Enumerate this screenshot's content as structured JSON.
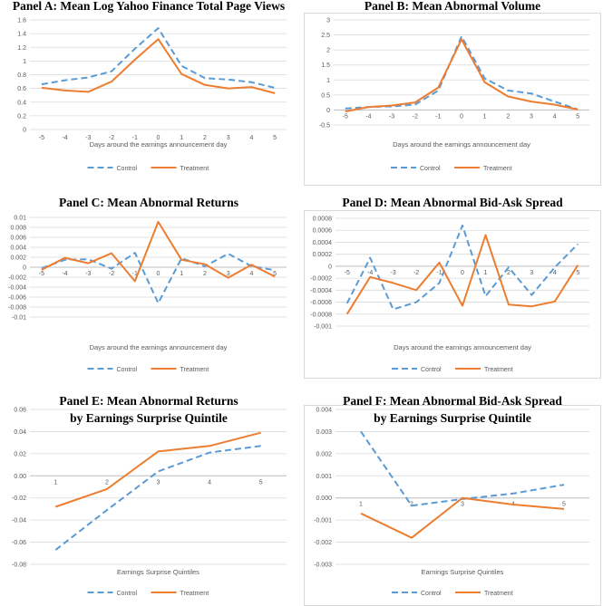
{
  "figure": {
    "colors": {
      "control": "#5B9BD5",
      "treatment": "#ED7D31",
      "grid": "#D9D9D9",
      "border": "#D9D9D9"
    },
    "legend": {
      "control_label": "Control",
      "treatment_label": "Treatment",
      "placement": "bottom"
    }
  },
  "chart_data": [
    {
      "id": "A",
      "type": "line",
      "title": "Panel A: Mean Log Yahoo Finance Total Page Views",
      "xlabel": "Days around the earnings announcement day",
      "ylabel": "",
      "categories": [
        "-5",
        "-4",
        "-3",
        "-2",
        "-1",
        "0",
        "1",
        "2",
        "3",
        "4",
        "5"
      ],
      "ylim": [
        0,
        1.6
      ],
      "yticks": [
        "0",
        "0.2",
        "0.4",
        "0.6",
        "0.8",
        "1",
        "1.2",
        "1.4",
        "1.6"
      ],
      "series": [
        {
          "name": "Control",
          "values": [
            0.66,
            0.72,
            0.76,
            0.85,
            1.18,
            1.48,
            0.93,
            0.75,
            0.73,
            0.69,
            0.61
          ]
        },
        {
          "name": "Treatment",
          "values": [
            0.61,
            0.57,
            0.55,
            0.7,
            1.02,
            1.32,
            0.81,
            0.65,
            0.6,
            0.62,
            0.53
          ]
        }
      ],
      "grid": true,
      "tick_labels_on_zero_line": false
    },
    {
      "id": "B",
      "type": "line",
      "title": "Panel B: Mean Abnormal Volume",
      "xlabel": "Days around the earnings announcement day",
      "ylabel": "",
      "categories": [
        "-5",
        "-4",
        "-3",
        "-2",
        "-1",
        "0",
        "1",
        "2",
        "3",
        "4",
        "5"
      ],
      "ylim": [
        -0.5,
        3
      ],
      "yticks": [
        "-0.5",
        "0",
        "0.5",
        "1",
        "1.5",
        "2",
        "2.5",
        "3"
      ],
      "series": [
        {
          "name": "Control",
          "values": [
            0.05,
            0.1,
            0.12,
            0.18,
            0.65,
            2.45,
            1.05,
            0.65,
            0.55,
            0.28,
            0.02
          ]
        },
        {
          "name": "Treatment",
          "values": [
            -0.05,
            0.1,
            0.15,
            0.25,
            0.75,
            2.35,
            0.92,
            0.45,
            0.28,
            0.18,
            0.02
          ]
        }
      ],
      "grid": true,
      "tick_labels_on_zero_line": true
    },
    {
      "id": "C",
      "type": "line",
      "title": "Panel C: Mean Abnormal Returns",
      "xlabel": "Days around the earnings announcement day",
      "ylabel": "",
      "categories": [
        "-5",
        "-4",
        "-3",
        "-2",
        "-1",
        "0",
        "1",
        "2",
        "3",
        "4",
        "5"
      ],
      "ylim": [
        -0.01,
        0.01
      ],
      "yticks": [
        "-0.01",
        "-0.008",
        "-0.006",
        "-0.004",
        "-0.002",
        "0",
        "0.002",
        "0.004",
        "0.006",
        "0.008",
        "0.01"
      ],
      "series": [
        {
          "name": "Control",
          "values": [
            -0.0002,
            0.0015,
            0.0016,
            -0.0003,
            0.0029,
            -0.0072,
            0.0018,
            0.0002,
            0.0027,
            0.0002,
            -0.0006
          ]
        },
        {
          "name": "Treatment",
          "values": [
            -0.0005,
            0.0019,
            0.0008,
            0.0028,
            -0.0028,
            0.0091,
            0.0015,
            0.0006,
            -0.0021,
            0.0005,
            -0.0019
          ]
        }
      ],
      "grid": true,
      "tick_labels_on_zero_line": true
    },
    {
      "id": "D",
      "type": "line",
      "title": "Panel D: Mean Abnormal Bid-Ask Spread",
      "xlabel": "Days around the earnings announcement day",
      "ylabel": "",
      "categories": [
        "-5",
        "-4",
        "-3",
        "-2",
        "-1",
        "0",
        "1",
        "2",
        "3",
        "4",
        "5"
      ],
      "ylim": [
        -0.001,
        0.0008
      ],
      "yticks": [
        "-0.001",
        "-0.0008",
        "-0.0006",
        "-0.0004",
        "-0.0002",
        "0",
        "0.0002",
        "0.0004",
        "0.0006",
        "0.0008"
      ],
      "series": [
        {
          "name": "Control",
          "values": [
            -0.00062,
            0.00014,
            -0.00072,
            -0.0006,
            -0.00028,
            0.00068,
            -0.0005,
            -2e-05,
            -0.00048,
            -2e-05,
            0.00037
          ]
        },
        {
          "name": "Treatment",
          "values": [
            -0.0008,
            -0.00018,
            -0.00028,
            -0.0004,
            6e-05,
            -0.00066,
            0.00052,
            -0.00064,
            -0.00067,
            -0.00059,
            2e-05
          ]
        }
      ],
      "grid": true,
      "tick_labels_on_zero_line": true
    },
    {
      "id": "E",
      "type": "line",
      "title": "Panel E: Mean Abnormal Returns",
      "subtitle": "by Earnings Surprise Quintile",
      "xlabel": "Earnings Surprise Quintiles",
      "ylabel": "",
      "categories": [
        "1",
        "2",
        "3",
        "4",
        "5"
      ],
      "ylim": [
        -0.08,
        0.06
      ],
      "yticks": [
        "-0.08",
        "-0.06",
        "-0.04",
        "-0.02",
        "0.00",
        "0.02",
        "0.04",
        "0.06"
      ],
      "series": [
        {
          "name": "Control",
          "values": [
            -0.067,
            -0.031,
            0.004,
            0.021,
            0.027
          ]
        },
        {
          "name": "Treatment",
          "values": [
            -0.028,
            -0.012,
            0.022,
            0.027,
            0.039
          ]
        }
      ],
      "grid": true,
      "tick_labels_on_zero_line": true
    },
    {
      "id": "F",
      "type": "line",
      "title": "Panel F: Mean Abnormal Bid-Ask Spread",
      "subtitle": "by Earnings Surprise Quintile",
      "xlabel": "Earnings Surprise Quintiles",
      "ylabel": "",
      "categories": [
        "1",
        "2",
        "3",
        "4",
        "5"
      ],
      "ylim": [
        -0.003,
        0.004
      ],
      "yticks": [
        "-0.003",
        "-0.002",
        "-0.001",
        "0.000",
        "0.001",
        "0.002",
        "0.003",
        "0.004"
      ],
      "series": [
        {
          "name": "Control",
          "values": [
            0.003,
            -0.00035,
            -5e-05,
            0.0002,
            0.0006
          ]
        },
        {
          "name": "Treatment",
          "values": [
            -0.0007,
            -0.0018,
            0.0,
            -0.0003,
            -0.0005
          ]
        }
      ],
      "grid": true,
      "tick_labels_on_zero_line": true
    }
  ]
}
